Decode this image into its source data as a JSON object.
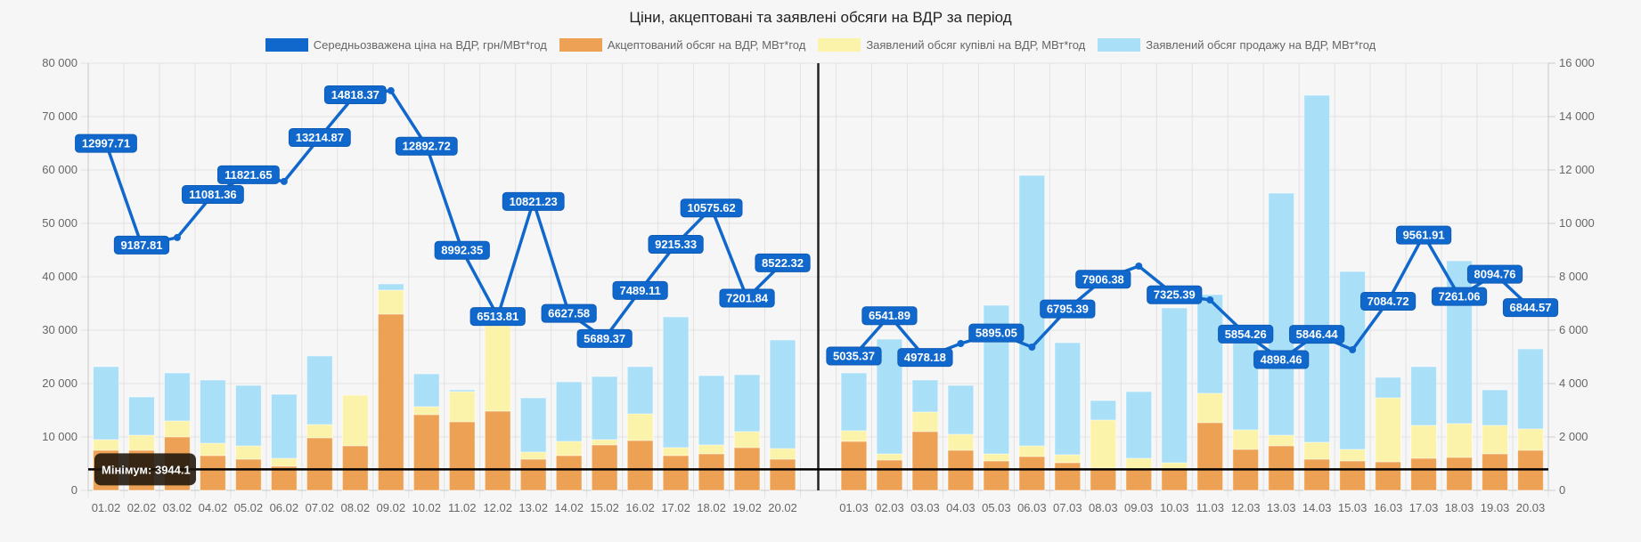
{
  "chart_data": {
    "type": "bar",
    "title": "Ціни, акцептовані та заявлені обсяги на ВДР за період",
    "legend_position": "top",
    "grid": true,
    "categories": [
      "01.02",
      "02.02",
      "03.02",
      "04.02",
      "05.02",
      "06.02",
      "07.02",
      "08.02",
      "09.02",
      "10.02",
      "11.02",
      "12.02",
      "13.02",
      "14.02",
      "15.02",
      "16.02",
      "17.02",
      "18.02",
      "19.02",
      "20.02",
      "",
      "01.03",
      "02.03",
      "03.03",
      "04.03",
      "05.03",
      "06.03",
      "07.03",
      "08.03",
      "09.03",
      "10.03",
      "11.03",
      "12.03",
      "13.03",
      "14.03",
      "15.03",
      "16.03",
      "17.03",
      "18.03",
      "19.03",
      "20.03"
    ],
    "y_left": {
      "min": 0,
      "max": 80000,
      "step": 10000,
      "ticks": [
        "0",
        "10 000",
        "20 000",
        "30 000",
        "40 000",
        "50 000",
        "60 000",
        "70 000",
        "80 000"
      ]
    },
    "y_right": {
      "min": 0,
      "max": 16000,
      "step": 2000,
      "ticks": [
        "0",
        "2 000",
        "4 000",
        "6 000",
        "8 000",
        "10 000",
        "12 000",
        "14 000",
        "16 000"
      ]
    },
    "series": [
      {
        "name": "Середньозважена ціна на ВДР, грн/МВт*год",
        "type": "line",
        "axis": "right",
        "color": "#1168cc",
        "values": [
          12997.71,
          9187.81,
          9470,
          11081.36,
          11821.65,
          11570,
          13214.87,
          14818.37,
          14970,
          12892.72,
          8992.35,
          6513.81,
          10821.23,
          6627.58,
          5689.37,
          7489.11,
          9215.33,
          10575.62,
          7201.84,
          8522.32,
          null,
          5035.37,
          6541.89,
          4978.18,
          5500,
          5895.05,
          5367,
          6795.39,
          7906.38,
          8400,
          7325.39,
          7133,
          5854.26,
          4898.46,
          5846.44,
          5267,
          7084.72,
          9561.91,
          7261.06,
          8094.76,
          6844.57
        ],
        "labels_shown": [
          true,
          true,
          false,
          true,
          true,
          false,
          true,
          true,
          false,
          true,
          true,
          true,
          true,
          true,
          true,
          true,
          true,
          true,
          true,
          true,
          false,
          true,
          true,
          true,
          false,
          true,
          false,
          true,
          true,
          false,
          true,
          false,
          true,
          true,
          true,
          false,
          true,
          true,
          true,
          true,
          true
        ]
      },
      {
        "name": "Акцептований обсяг на ВДР, МВт*год",
        "type": "bar",
        "axis": "left",
        "color": "#eda155",
        "values": [
          7500,
          7500,
          10000,
          6500,
          5830,
          4500,
          9830,
          8330,
          33000,
          14170,
          12830,
          14830,
          5830,
          6500,
          8500,
          9330,
          6500,
          6830,
          8000,
          5830,
          null,
          9170,
          5670,
          11000,
          7500,
          5500,
          6330,
          5170,
          4170,
          4000,
          4000,
          12670,
          7670,
          8330,
          5830,
          5500,
          5330,
          6000,
          6170,
          6830,
          7500
        ]
      },
      {
        "name": "Заявлений обсяг купівлі на ВДР, МВт*год",
        "type": "bar",
        "axis": "left",
        "color": "#fcf3ab",
        "values": [
          9500,
          10330,
          13000,
          8830,
          8330,
          6000,
          12330,
          17830,
          37500,
          15670,
          18500,
          30830,
          7170,
          9170,
          9500,
          14330,
          8000,
          8500,
          11000,
          7830,
          null,
          11170,
          6830,
          14670,
          10500,
          6830,
          8330,
          6670,
          13170,
          6000,
          5170,
          18170,
          11330,
          10330,
          9000,
          7670,
          17330,
          12170,
          12500,
          12170,
          11500
        ]
      },
      {
        "name": "Заявлений обсяг продажу на ВДР, МВт*год",
        "type": "bar",
        "axis": "left",
        "color": "#aadff8",
        "values": [
          23170,
          17500,
          22000,
          20670,
          19670,
          18000,
          25170,
          12500,
          38670,
          21830,
          18830,
          14000,
          17330,
          20330,
          21330,
          23170,
          32500,
          21500,
          21670,
          28170,
          null,
          22000,
          28330,
          20670,
          19670,
          34670,
          59000,
          27670,
          16830,
          18500,
          34170,
          36670,
          29000,
          55670,
          74000,
          41000,
          21170,
          23170,
          43000,
          18830,
          26500
        ]
      }
    ],
    "annotations": [
      {
        "type": "horizontal-line",
        "axis": "left",
        "value": 3944.1,
        "label": "Мінімум: 3944.1",
        "color": "#000000"
      },
      {
        "type": "vertical-line",
        "at_category_index": 20,
        "color": "#222222"
      }
    ]
  }
}
